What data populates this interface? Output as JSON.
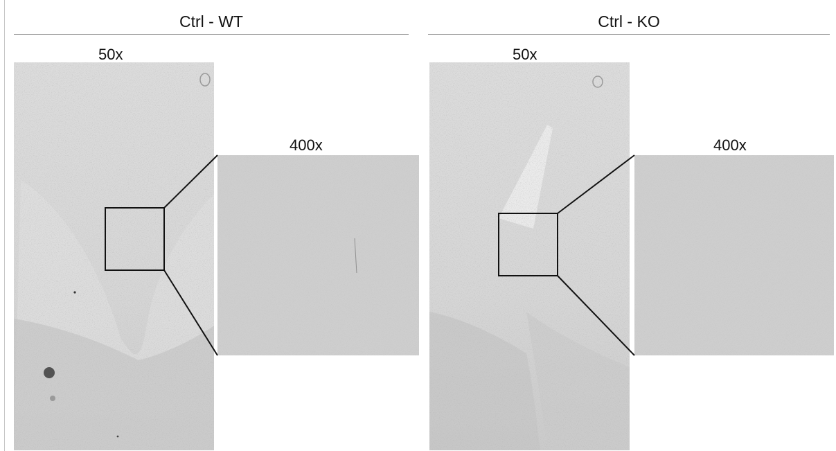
{
  "panels": [
    {
      "title": "Ctrl - WT",
      "low_mag_label": "50x",
      "high_mag_label": "400x"
    },
    {
      "title": "Ctrl - KO",
      "low_mag_label": "50x",
      "high_mag_label": "400x"
    }
  ],
  "colors": {
    "tissue_light": "#dadada",
    "tissue_bright": "#e4e4e4",
    "tissue_dark": "#c9c9c9",
    "high_mag_fill": "#cdcdcd",
    "inset_stroke": "#111111",
    "rule": "#8a8a8a"
  }
}
